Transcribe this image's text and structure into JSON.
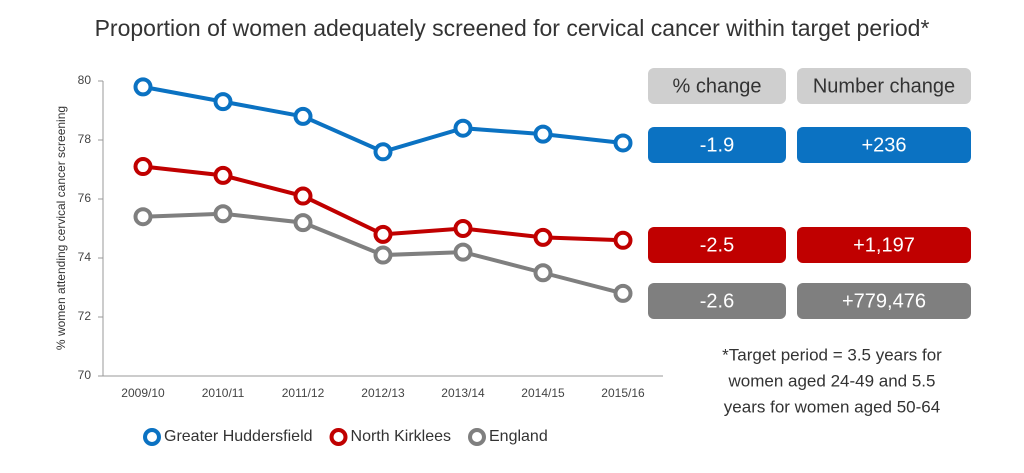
{
  "chart_data": {
    "type": "line",
    "title": "Proportion of women adequately screened for cervical cancer within target period*",
    "y_label": "% women attending cervical cancer screening",
    "categories": [
      "2009/10",
      "2010/11",
      "2011/12",
      "2012/13",
      "2013/14",
      "2014/15",
      "2015/16"
    ],
    "series": [
      {
        "name": "Greater Huddersfield",
        "color": "#0b72c2",
        "values": [
          79.8,
          79.3,
          78.8,
          77.6,
          78.4,
          78.2,
          77.9
        ]
      },
      {
        "name": "North Kirklees",
        "color": "#c00000",
        "values": [
          77.1,
          76.8,
          76.1,
          74.8,
          75.0,
          74.7,
          74.6
        ]
      },
      {
        "name": "England",
        "color": "#7f7f7f",
        "values": [
          75.4,
          75.5,
          75.2,
          74.1,
          74.2,
          73.5,
          72.8
        ]
      }
    ],
    "ylim": [
      70,
      80
    ],
    "yticks": [
      70,
      72,
      74,
      76,
      78,
      80
    ],
    "grid": false,
    "legend": "bottom",
    "change_table": {
      "columns": [
        "% change",
        "Number change"
      ],
      "rows": [
        [
          "-1.9",
          "+236"
        ],
        [
          "-2.5",
          "+1,197"
        ],
        [
          "-2.6",
          "+779,476"
        ]
      ]
    },
    "footnote": [
      "*Target period = 3.5 years for",
      "women aged 24-49 and 5.5",
      "years for women aged 50-64"
    ]
  }
}
